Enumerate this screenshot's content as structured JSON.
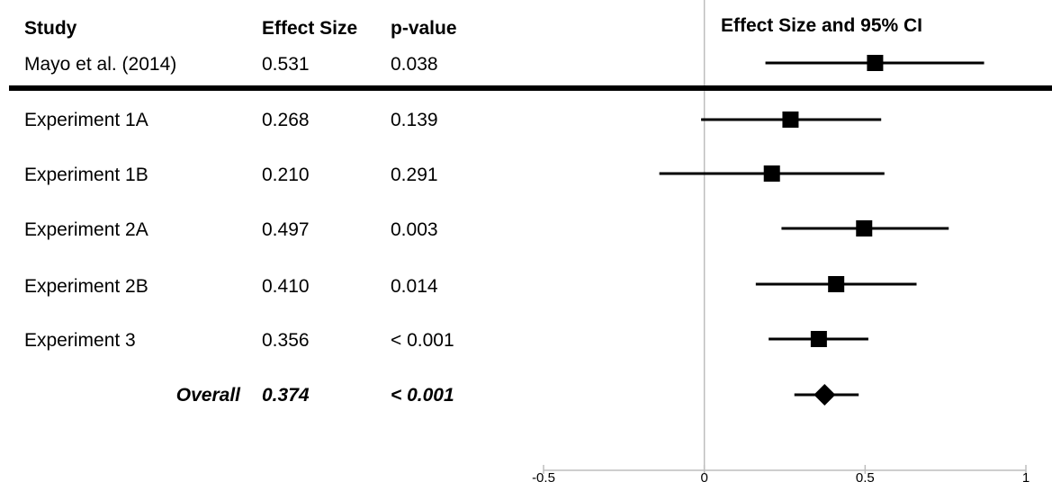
{
  "chart_data": {
    "type": "forest",
    "title": "Effect Size and 95% CI",
    "columns": {
      "study": "Study",
      "effect_size": "Effect Size",
      "p_value": "p-value"
    },
    "reference_study": {
      "study": "Mayo et al. (2014)",
      "effect_size": 0.531,
      "effect_size_label": "0.531",
      "p_value": "0.038",
      "ci": [
        0.19,
        0.87
      ]
    },
    "studies": [
      {
        "study": "Experiment 1A",
        "effect_size": 0.268,
        "effect_size_label": "0.268",
        "p_value": "0.139",
        "ci": [
          -0.01,
          0.55
        ]
      },
      {
        "study": "Experiment 1B",
        "effect_size": 0.21,
        "effect_size_label": "0.210",
        "p_value": "0.291",
        "ci": [
          -0.14,
          0.56
        ]
      },
      {
        "study": "Experiment 2A",
        "effect_size": 0.497,
        "effect_size_label": "0.497",
        "p_value": "0.003",
        "ci": [
          0.24,
          0.76
        ]
      },
      {
        "study": "Experiment 2B",
        "effect_size": 0.41,
        "effect_size_label": "0.410",
        "p_value": "0.014",
        "ci": [
          0.16,
          0.66
        ]
      },
      {
        "study": "Experiment 3",
        "effect_size": 0.356,
        "effect_size_label": "0.356",
        "p_value": "< 0.001",
        "ci": [
          0.2,
          0.51
        ]
      }
    ],
    "overall": {
      "study": "Overall",
      "effect_size": 0.374,
      "effect_size_label": "0.374",
      "p_value": "< 0.001",
      "ci": [
        0.28,
        0.48
      ]
    },
    "xlim": [
      -0.5,
      1
    ],
    "x_ticks": [
      -0.5,
      0,
      0.5,
      1
    ],
    "x_tick_labels": [
      "-0.5",
      "0",
      "0.5",
      "1"
    ],
    "grid": false,
    "reference_line": 0,
    "marker_color": "#000000",
    "reference_line_color": "#bdbdbd"
  }
}
